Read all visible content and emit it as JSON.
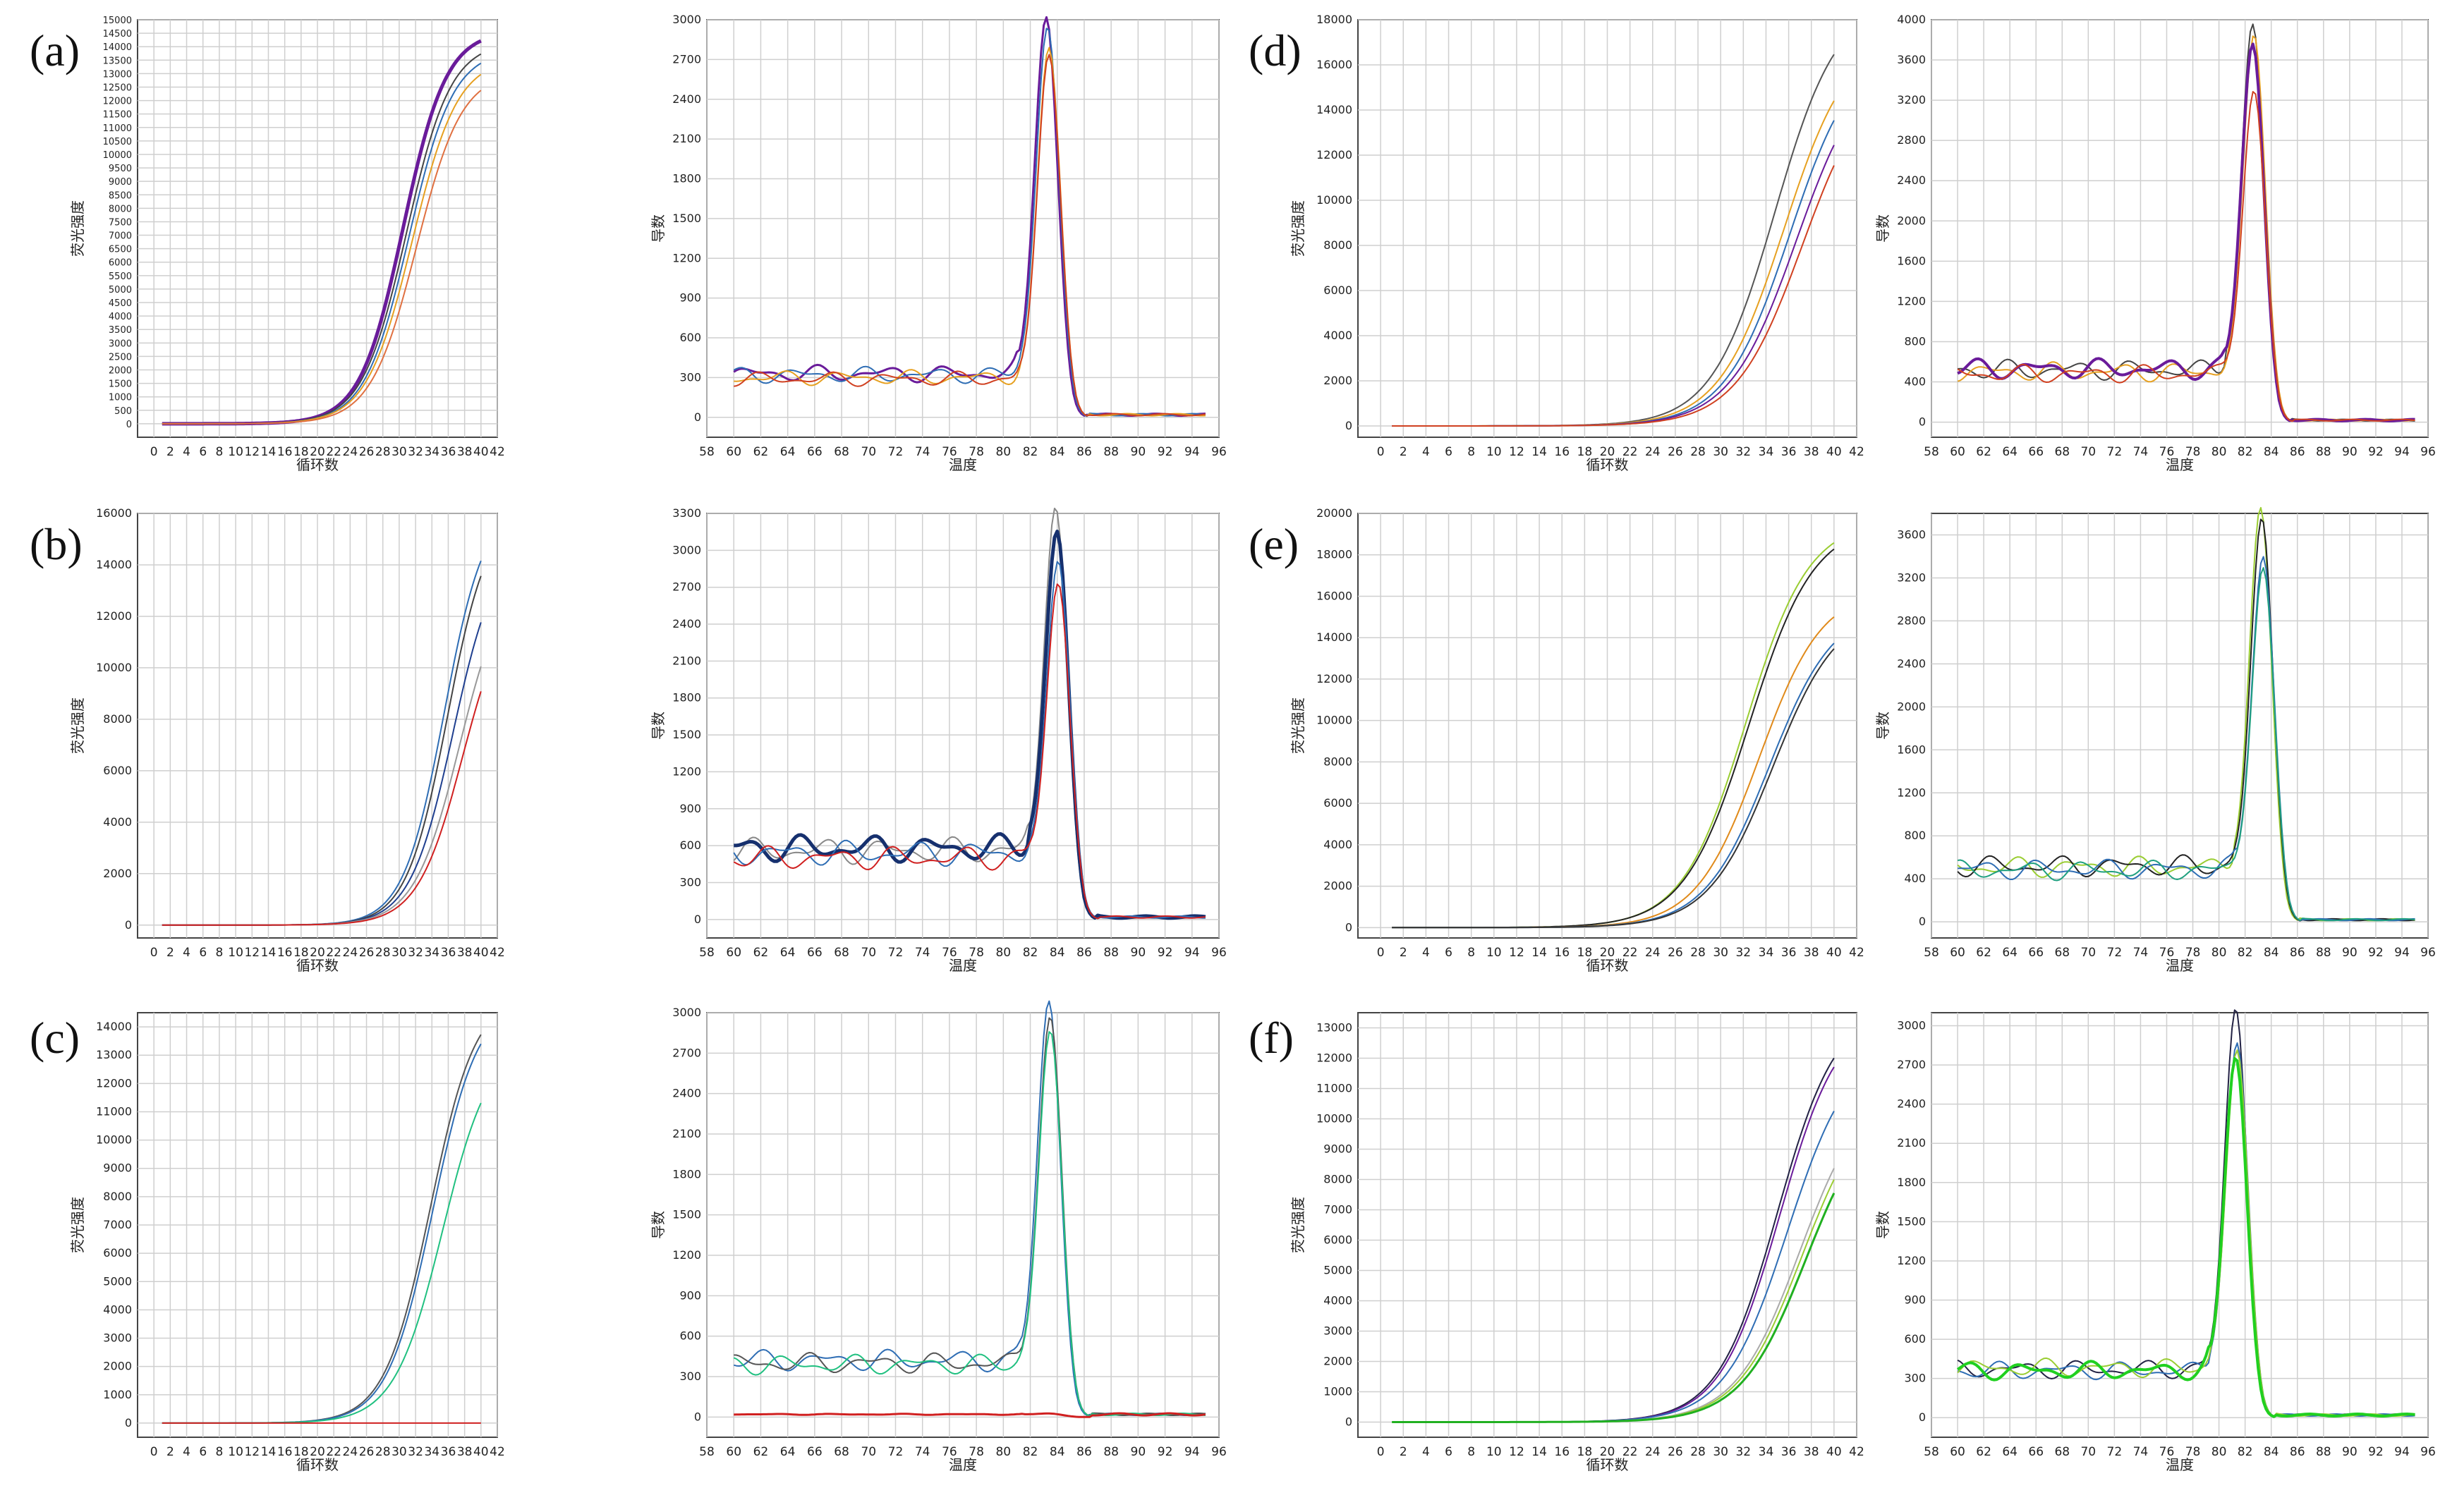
{
  "figure": {
    "panel_labels": [
      "(a)",
      "(b)",
      "(c)",
      "(d)",
      "(e)",
      "(f)"
    ],
    "amp_xlabel": "循环数",
    "amp_ylabel": "荧光强度",
    "melt_xlabel": "温度",
    "melt_ylabel": "导数"
  },
  "chart_data": [
    {
      "panel": "(a)",
      "type": "line",
      "kind": "amplification",
      "xlabel": "循环数",
      "ylabel": "荧光强度",
      "xlim": [
        -2,
        42
      ],
      "ylim": [
        -500,
        15000
      ],
      "xticks": [
        0,
        2,
        4,
        6,
        8,
        10,
        12,
        14,
        16,
        18,
        20,
        22,
        24,
        26,
        28,
        30,
        32,
        34,
        36,
        38,
        40,
        42
      ],
      "yticks": [
        0,
        500,
        1000,
        1500,
        2000,
        2500,
        3000,
        3500,
        4000,
        4500,
        5000,
        5500,
        6000,
        6500,
        7000,
        7500,
        8000,
        8500,
        9000,
        9500,
        10000,
        10500,
        11000,
        11500,
        12000,
        12500,
        13000,
        13500,
        14000,
        14500,
        15000
      ],
      "grid": true,
      "series": [
        {
          "plateau": 14600,
          "ct": 30.5,
          "k": 0.38,
          "color": "#6a1b9a",
          "width": 5
        },
        {
          "plateau": 14200,
          "ct": 30.9,
          "k": 0.37,
          "color": "#444444",
          "width": 2
        },
        {
          "plateau": 13900,
          "ct": 31.2,
          "k": 0.37,
          "color": "#2e6db4",
          "width": 2
        },
        {
          "plateau": 13600,
          "ct": 31.6,
          "k": 0.36,
          "color": "#e6a020",
          "width": 2
        },
        {
          "plateau": 13100,
          "ct": 32.1,
          "k": 0.36,
          "color": "#e07040",
          "width": 2
        }
      ]
    },
    {
      "panel": "(a)",
      "type": "line",
      "kind": "melt",
      "xlabel": "温度",
      "ylabel": "导数",
      "xlim": [
        58,
        96
      ],
      "ylim": [
        -150,
        3000
      ],
      "xticks": [
        58,
        60,
        62,
        64,
        66,
        68,
        70,
        72,
        74,
        76,
        78,
        80,
        82,
        84,
        86,
        88,
        90,
        92,
        94,
        96
      ],
      "yticks": [
        0,
        300,
        600,
        900,
        1200,
        1500,
        1800,
        2100,
        2400,
        2700,
        3000
      ],
      "grid": true,
      "series": [
        {
          "peak": 2920,
          "tm": 83.2,
          "base": 330,
          "color": "#6a1b9a",
          "width": 3
        },
        {
          "peak": 2850,
          "tm": 83.3,
          "base": 320,
          "color": "#2e6db4",
          "width": 2
        },
        {
          "peak": 2700,
          "tm": 83.4,
          "base": 300,
          "color": "#e6a020",
          "width": 2
        },
        {
          "peak": 2650,
          "tm": 83.4,
          "base": 290,
          "color": "#d04020",
          "width": 2
        }
      ]
    },
    {
      "panel": "(d)",
      "type": "line",
      "kind": "amplification",
      "xlabel": "循环数",
      "ylabel": "荧光强度",
      "xlim": [
        -2,
        42
      ],
      "ylim": [
        -500,
        18000
      ],
      "xticks": [
        0,
        2,
        4,
        6,
        8,
        10,
        12,
        14,
        16,
        18,
        20,
        22,
        24,
        26,
        28,
        30,
        32,
        34,
        36,
        38,
        40,
        42
      ],
      "yticks": [
        0,
        2000,
        4000,
        6000,
        8000,
        10000,
        12000,
        14000,
        16000,
        18000
      ],
      "grid": true,
      "series": [
        {
          "plateau": 19000,
          "ct": 34.8,
          "k": 0.36,
          "color": "#555555",
          "width": 2
        },
        {
          "plateau": 17500,
          "ct": 35.6,
          "k": 0.35,
          "color": "#e6a020",
          "width": 2
        },
        {
          "plateau": 17000,
          "ct": 36.1,
          "k": 0.35,
          "color": "#2e6db4",
          "width": 2
        },
        {
          "plateau": 16500,
          "ct": 36.7,
          "k": 0.34,
          "color": "#6a1b9a",
          "width": 2
        },
        {
          "plateau": 16000,
          "ct": 37.2,
          "k": 0.34,
          "color": "#d04020",
          "width": 2
        }
      ]
    },
    {
      "panel": "(d)",
      "type": "line",
      "kind": "melt",
      "xlabel": "温度",
      "ylabel": "导数",
      "xlim": [
        58,
        96
      ],
      "ylim": [
        -150,
        4000
      ],
      "xticks": [
        58,
        60,
        62,
        64,
        66,
        68,
        70,
        72,
        74,
        76,
        78,
        80,
        82,
        84,
        86,
        88,
        90,
        92,
        94,
        96
      ],
      "yticks": [
        0,
        400,
        800,
        1200,
        1600,
        2000,
        2400,
        2800,
        3200,
        3600,
        4000
      ],
      "grid": true,
      "series": [
        {
          "peak": 3800,
          "tm": 82.6,
          "base": 520,
          "color": "#444444",
          "width": 2
        },
        {
          "peak": 3700,
          "tm": 82.7,
          "base": 500,
          "color": "#e6a020",
          "width": 2
        },
        {
          "peak": 3600,
          "tm": 82.6,
          "base": 530,
          "color": "#6a1b9a",
          "width": 4
        },
        {
          "peak": 3150,
          "tm": 82.7,
          "base": 480,
          "color": "#d04020",
          "width": 2
        }
      ]
    },
    {
      "panel": "(b)",
      "type": "line",
      "kind": "amplification",
      "xlabel": "循环数",
      "ylabel": "荧光强度",
      "xlim": [
        -2,
        42
      ],
      "ylim": [
        -500,
        16000
      ],
      "xticks": [
        0,
        2,
        4,
        6,
        8,
        10,
        12,
        14,
        16,
        18,
        20,
        22,
        24,
        26,
        28,
        30,
        32,
        34,
        36,
        38,
        40,
        42
      ],
      "yticks": [
        0,
        2000,
        4000,
        6000,
        8000,
        10000,
        12000,
        14000,
        16000
      ],
      "grid": true,
      "series": [
        {
          "plateau": 16500,
          "ct": 35.5,
          "k": 0.4,
          "color": "#2e6db4",
          "width": 2
        },
        {
          "plateau": 16200,
          "ct": 35.9,
          "k": 0.4,
          "color": "#444444",
          "width": 2
        },
        {
          "plateau": 15000,
          "ct": 36.6,
          "k": 0.38,
          "color": "#1f3f8f",
          "width": 2
        },
        {
          "plateau": 14000,
          "ct": 37.4,
          "k": 0.36,
          "color": "#999999",
          "width": 2
        },
        {
          "plateau": 13200,
          "ct": 37.8,
          "k": 0.36,
          "color": "#d02020",
          "width": 2
        }
      ]
    },
    {
      "panel": "(b)",
      "type": "line",
      "kind": "melt",
      "xlabel": "温度",
      "ylabel": "导数",
      "xlim": [
        58,
        96
      ],
      "ylim": [
        -150,
        3300
      ],
      "xticks": [
        58,
        60,
        62,
        64,
        66,
        68,
        70,
        72,
        74,
        76,
        78,
        80,
        82,
        84,
        86,
        88,
        90,
        92,
        94,
        96
      ],
      "yticks": [
        0,
        300,
        600,
        900,
        1200,
        1500,
        1800,
        2100,
        2400,
        2700,
        3000,
        3300
      ],
      "grid": true,
      "series": [
        {
          "peak": 3180,
          "tm": 83.9,
          "base": 560,
          "color": "#888888",
          "width": 2
        },
        {
          "peak": 2980,
          "tm": 84.0,
          "base": 580,
          "color": "#16306e",
          "width": 5
        },
        {
          "peak": 2750,
          "tm": 84.1,
          "base": 540,
          "color": "#2e6db4",
          "width": 2
        },
        {
          "peak": 2580,
          "tm": 84.1,
          "base": 500,
          "color": "#d02020",
          "width": 2
        }
      ]
    },
    {
      "panel": "(e)",
      "type": "line",
      "kind": "amplification",
      "xlabel": "循环数",
      "ylabel": "荧光强度",
      "xlim": [
        -2,
        42
      ],
      "ylim": [
        -500,
        20000
      ],
      "xticks": [
        0,
        2,
        4,
        6,
        8,
        10,
        12,
        14,
        16,
        18,
        20,
        22,
        24,
        26,
        28,
        30,
        32,
        34,
        36,
        38,
        40,
        42
      ],
      "yticks": [
        0,
        2000,
        4000,
        6000,
        8000,
        10000,
        12000,
        14000,
        16000,
        18000,
        20000
      ],
      "grid": true,
      "series": [
        {
          "plateau": 19700,
          "ct": 32.2,
          "k": 0.36,
          "color": "#9acd32",
          "width": 2
        },
        {
          "plateau": 19600,
          "ct": 32.5,
          "k": 0.35,
          "color": "#222222",
          "width": 2
        },
        {
          "plateau": 16400,
          "ct": 33.4,
          "k": 0.36,
          "color": "#e08a1a",
          "width": 2
        },
        {
          "plateau": 15600,
          "ct": 34.3,
          "k": 0.35,
          "color": "#2e6db4",
          "width": 2
        },
        {
          "plateau": 15500,
          "ct": 34.6,
          "k": 0.35,
          "color": "#333333",
          "width": 2
        }
      ]
    },
    {
      "panel": "(e)",
      "type": "line",
      "kind": "melt",
      "xlabel": "温度",
      "ylabel": "导数",
      "xlim": [
        58,
        96
      ],
      "ylim": [
        -150,
        3800
      ],
      "xticks": [
        58,
        60,
        62,
        64,
        66,
        68,
        70,
        72,
        74,
        76,
        78,
        80,
        82,
        84,
        86,
        88,
        90,
        92,
        94,
        96
      ],
      "yticks": [
        0,
        400,
        800,
        1200,
        1600,
        2000,
        2400,
        2800,
        3200,
        3600
      ],
      "grid": true,
      "series": [
        {
          "peak": 3700,
          "tm": 83.2,
          "base": 510,
          "color": "#9acd32",
          "width": 2
        },
        {
          "peak": 3600,
          "tm": 83.3,
          "base": 520,
          "color": "#222222",
          "width": 2
        },
        {
          "peak": 3250,
          "tm": 83.4,
          "base": 490,
          "color": "#2e6db4",
          "width": 2
        },
        {
          "peak": 3150,
          "tm": 83.4,
          "base": 480,
          "color": "#20a080",
          "width": 2
        }
      ]
    },
    {
      "panel": "(c)",
      "type": "line",
      "kind": "amplification",
      "xlabel": "循环数",
      "ylabel": "荧光强度",
      "xlim": [
        -2,
        42
      ],
      "ylim": [
        -500,
        14500
      ],
      "xticks": [
        0,
        2,
        4,
        6,
        8,
        10,
        12,
        14,
        16,
        18,
        20,
        22,
        24,
        26,
        28,
        30,
        32,
        34,
        36,
        38,
        40,
        42
      ],
      "yticks": [
        0,
        1000,
        2000,
        3000,
        4000,
        5000,
        6000,
        7000,
        8000,
        9000,
        10000,
        11000,
        12000,
        13000,
        14000
      ],
      "grid": true,
      "series": [
        {
          "plateau": 15200,
          "ct": 33.8,
          "k": 0.36,
          "color": "#555555",
          "width": 2
        },
        {
          "plateau": 15000,
          "ct": 34.1,
          "k": 0.36,
          "color": "#2e6db4",
          "width": 2
        },
        {
          "plateau": 13600,
          "ct": 35.3,
          "k": 0.34,
          "color": "#20c080",
          "width": 2
        },
        {
          "plateau": 0,
          "ct": 60,
          "k": 0.3,
          "color": "#d02020",
          "width": 2
        }
      ]
    },
    {
      "panel": "(c)",
      "type": "line",
      "kind": "melt",
      "xlabel": "温度",
      "ylabel": "导数",
      "xlim": [
        58,
        96
      ],
      "ylim": [
        -150,
        3000
      ],
      "xticks": [
        58,
        60,
        62,
        64,
        66,
        68,
        70,
        72,
        74,
        76,
        78,
        80,
        82,
        84,
        86,
        88,
        90,
        92,
        94,
        96
      ],
      "yticks": [
        0,
        300,
        600,
        900,
        1200,
        1500,
        1800,
        2100,
        2400,
        2700,
        3000
      ],
      "grid": true,
      "series": [
        {
          "peak": 2960,
          "tm": 83.4,
          "base": 420,
          "color": "#2e6db4",
          "width": 2
        },
        {
          "peak": 2850,
          "tm": 83.5,
          "base": 400,
          "color": "#555555",
          "width": 2
        },
        {
          "peak": 2750,
          "tm": 83.5,
          "base": 390,
          "color": "#20c080",
          "width": 2
        },
        {
          "peak": 20,
          "tm": 83.5,
          "base": 20,
          "color": "#d02020",
          "width": 3
        }
      ]
    },
    {
      "panel": "(f)",
      "type": "line",
      "kind": "amplification",
      "xlabel": "循环数",
      "ylabel": "荧光强度",
      "xlim": [
        -2,
        42
      ],
      "ylim": [
        -500,
        13500
      ],
      "xticks": [
        0,
        2,
        4,
        6,
        8,
        10,
        12,
        14,
        16,
        18,
        20,
        22,
        24,
        26,
        28,
        30,
        32,
        34,
        36,
        38,
        40,
        42
      ],
      "yticks": [
        0,
        1000,
        2000,
        3000,
        4000,
        5000,
        6000,
        7000,
        8000,
        9000,
        10000,
        11000,
        12000,
        13000
      ],
      "grid": true,
      "series": [
        {
          "plateau": 13800,
          "ct": 35.0,
          "k": 0.38,
          "color": "#222244",
          "width": 2
        },
        {
          "plateau": 13600,
          "ct": 35.2,
          "k": 0.38,
          "color": "#6a1b9a",
          "width": 2
        },
        {
          "plateau": 12600,
          "ct": 35.9,
          "k": 0.36,
          "color": "#2e6db4",
          "width": 2
        },
        {
          "plateau": 11300,
          "ct": 37.0,
          "k": 0.35,
          "color": "#aaaaaa",
          "width": 2
        },
        {
          "plateau": 11000,
          "ct": 37.2,
          "k": 0.35,
          "color": "#9acd32",
          "width": 2
        },
        {
          "plateau": 10700,
          "ct": 37.5,
          "k": 0.35,
          "color": "#20b020",
          "width": 3
        }
      ]
    },
    {
      "panel": "(f)",
      "type": "line",
      "kind": "melt",
      "xlabel": "温度",
      "ylabel": "导数",
      "xlim": [
        58,
        96
      ],
      "ylim": [
        -150,
        3100
      ],
      "xticks": [
        58,
        60,
        62,
        64,
        66,
        68,
        70,
        72,
        74,
        76,
        78,
        80,
        82,
        84,
        86,
        88,
        90,
        92,
        94,
        96
      ],
      "yticks": [
        0,
        300,
        600,
        900,
        1200,
        1500,
        1800,
        2100,
        2400,
        2700,
        3000
      ],
      "grid": true,
      "series": [
        {
          "peak": 3020,
          "tm": 81.3,
          "base": 370,
          "color": "#222244",
          "width": 2
        },
        {
          "peak": 2760,
          "tm": 81.4,
          "base": 360,
          "color": "#2e6db4",
          "width": 2
        },
        {
          "peak": 2700,
          "tm": 81.4,
          "base": 380,
          "color": "#9acd32",
          "width": 2
        },
        {
          "peak": 2650,
          "tm": 81.3,
          "base": 360,
          "color": "#20d020",
          "width": 4
        }
      ]
    }
  ]
}
